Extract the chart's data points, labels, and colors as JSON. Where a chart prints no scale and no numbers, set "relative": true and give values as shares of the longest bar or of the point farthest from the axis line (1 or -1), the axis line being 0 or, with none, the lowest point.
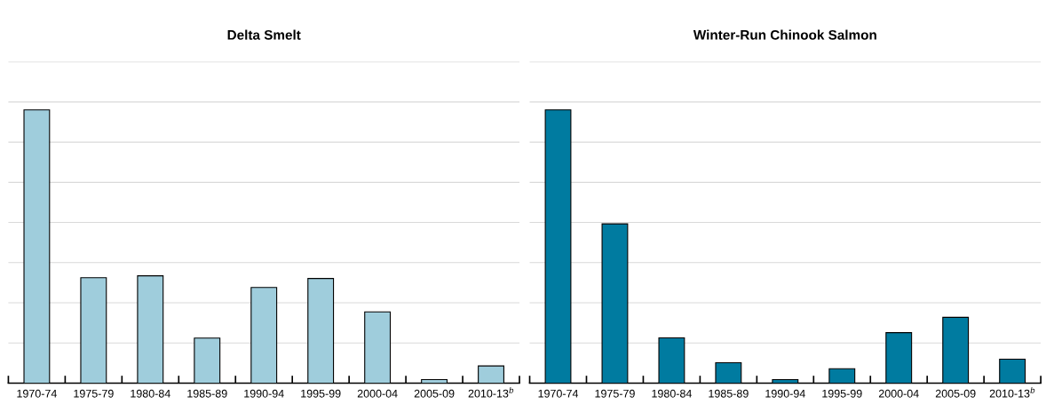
{
  "chart_data": [
    {
      "type": "bar",
      "title": "Delta Smelt",
      "relative": true,
      "grid": "y",
      "categories": [
        "1970-74",
        "1975-79",
        "1980-84",
        "1985-89",
        "1990-94",
        "1995-99",
        "2000-04",
        "2005-09",
        "2010-13$^{b}$"
      ],
      "series": [
        {
          "color": "#9fcddc",
          "values": [
            1,
            0.386,
            0.393,
            0.165,
            0.35,
            0.383,
            0.261,
            0.013,
            0.063
          ]
        }
      ]
    },
    {
      "type": "bar",
      "title": "Winter-Run Chinook Salmon",
      "relative": true,
      "grid": "y",
      "categories": [
        "1970-74",
        "1975-79",
        "1980-84",
        "1985-89",
        "1990-94",
        "1995-99",
        "2000-04",
        "2005-09",
        "2010-13$^{b}$"
      ],
      "series": [
        {
          "color": "#007ba0",
          "values": [
            1,
            0.583,
            0.166,
            0.075,
            0.013,
            0.053,
            0.185,
            0.241,
            0.088
          ]
        }
      ]
    }
  ]
}
